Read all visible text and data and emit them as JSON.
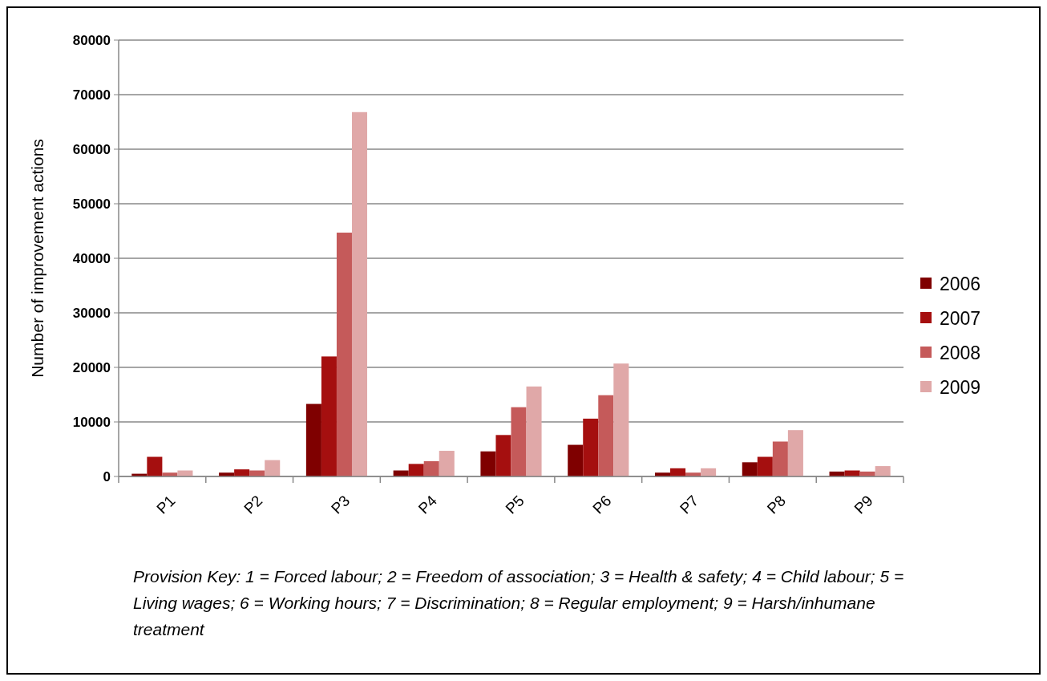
{
  "chart_data": {
    "type": "bar",
    "ylabel": "Number of improvement actions",
    "categories": [
      "P1",
      "P2",
      "P3",
      "P4",
      "P5",
      "P6",
      "P7",
      "P8",
      "P9"
    ],
    "series": [
      {
        "name": "2006",
        "color": "#7f0000",
        "values": [
          500,
          700,
          13300,
          1100,
          4600,
          5800,
          700,
          2600,
          900
        ]
      },
      {
        "name": "2007",
        "color": "#a50f0f",
        "values": [
          3600,
          1300,
          22000,
          2300,
          7600,
          10600,
          1500,
          3600,
          1100
        ]
      },
      {
        "name": "2008",
        "color": "#c55a5a",
        "values": [
          700,
          1100,
          44700,
          2800,
          12700,
          14900,
          700,
          6400,
          900
        ]
      },
      {
        "name": "2009",
        "color": "#e0a8a8",
        "values": [
          1100,
          3000,
          66800,
          4700,
          16500,
          20700,
          1500,
          8500,
          1900
        ]
      }
    ],
    "ylim": [
      0,
      80000
    ],
    "yticks": [
      0,
      10000,
      20000,
      30000,
      40000,
      50000,
      60000,
      70000,
      80000
    ],
    "grid": "y",
    "legend": "right",
    "annotations": [
      "Provision Key: 1 = Forced labour; 2 = Freedom of association; 3 = Health & safety; 4 = Child labour; 5 = Living wages; 6 = Working hours; 7 = Discrimination; 8 = Regular employment; 9 = Harsh/inhumane treatment"
    ]
  }
}
